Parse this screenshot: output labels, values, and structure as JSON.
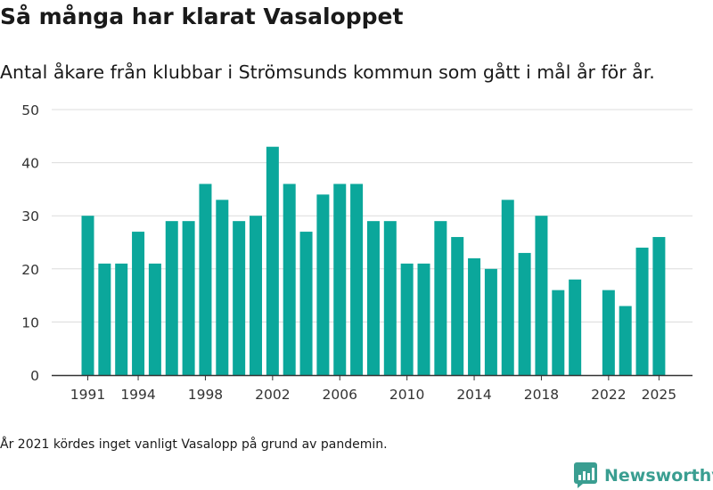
{
  "header": {
    "title": "Så många har klarat Vasaloppet",
    "subtitle": "Antal åkare från klubbar i Strömsunds kommun som gått i mål år för år."
  },
  "footnote": "År 2021 kördes inget vanligt Vasalopp på grund av pandemin.",
  "brand": {
    "name": "Newsworthy",
    "color": "#3a9e91"
  },
  "chart_data": {
    "type": "bar",
    "title": "Så många har klarat Vasaloppet",
    "subtitle": "Antal åkare från klubbar i Strömsunds kommun som gått i mål år för år.",
    "xlabel": "",
    "ylabel": "",
    "color": "#0ba79b",
    "ylim": [
      0,
      50
    ],
    "yticks": [
      0,
      10,
      20,
      30,
      40,
      50
    ],
    "xticks": [
      "1991",
      "1994",
      "1998",
      "2002",
      "2006",
      "2010",
      "2014",
      "2018",
      "2022",
      "2025"
    ],
    "grid": true,
    "legend": "none",
    "categories": [
      "1991",
      "1992",
      "1993",
      "1994",
      "1995",
      "1996",
      "1997",
      "1998",
      "1999",
      "2000",
      "2001",
      "2002",
      "2003",
      "2004",
      "2005",
      "2006",
      "2007",
      "2008",
      "2009",
      "2010",
      "2011",
      "2012",
      "2013",
      "2014",
      "2015",
      "2016",
      "2017",
      "2018",
      "2019",
      "2020",
      "2021",
      "2022",
      "2023",
      "2024",
      "2025"
    ],
    "values": [
      30,
      21,
      21,
      27,
      21,
      29,
      29,
      36,
      33,
      29,
      30,
      43,
      36,
      27,
      34,
      36,
      36,
      29,
      29,
      21,
      21,
      29,
      26,
      22,
      20,
      33,
      23,
      30,
      16,
      18,
      null,
      16,
      13,
      24,
      26
    ]
  }
}
